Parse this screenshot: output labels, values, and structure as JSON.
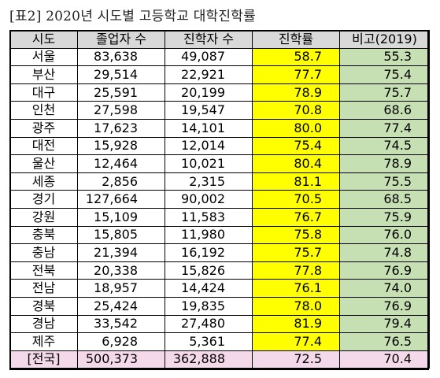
{
  "caption": "[표2] 2020년 시도별 고등학교 대학진학률",
  "headers": [
    "시도",
    "졸업자 수",
    "진학자 수",
    "진학률",
    "비고(2019)"
  ],
  "rows": [
    {
      "region": "서울",
      "graduates": "83,638",
      "entrants": "49,087",
      "rate": "58.7",
      "note": "55.3"
    },
    {
      "region": "부산",
      "graduates": "29,514",
      "entrants": "22,921",
      "rate": "77.7",
      "note": "75.4"
    },
    {
      "region": "대구",
      "graduates": "25,591",
      "entrants": "20,199",
      "rate": "78.9",
      "note": "75.7"
    },
    {
      "region": "인천",
      "graduates": "27,598",
      "entrants": "19,547",
      "rate": "70.8",
      "note": "68.6"
    },
    {
      "region": "광주",
      "graduates": "17,623",
      "entrants": "14,101",
      "rate": "80.0",
      "note": "77.4"
    },
    {
      "region": "대전",
      "graduates": "15,928",
      "entrants": "12,014",
      "rate": "75.4",
      "note": "74.5"
    },
    {
      "region": "울산",
      "graduates": "12,464",
      "entrants": "10,021",
      "rate": "80.4",
      "note": "78.9"
    },
    {
      "region": "세종",
      "graduates": "2,856",
      "entrants": "2,315",
      "rate": "81.1",
      "note": "75.5"
    },
    {
      "region": "경기",
      "graduates": "127,664",
      "entrants": "90,002",
      "rate": "70.5",
      "note": "68.5"
    },
    {
      "region": "강원",
      "graduates": "15,109",
      "entrants": "11,583",
      "rate": "76.7",
      "note": "75.9"
    },
    {
      "region": "충북",
      "graduates": "15,805",
      "entrants": "11,980",
      "rate": "75.8",
      "note": "76.0"
    },
    {
      "region": "충남",
      "graduates": "21,394",
      "entrants": "16,192",
      "rate": "75.7",
      "note": "74.8"
    },
    {
      "region": "전북",
      "graduates": "20,338",
      "entrants": "15,826",
      "rate": "77.8",
      "note": "76.9"
    },
    {
      "region": "전남",
      "graduates": "18,957",
      "entrants": "14,424",
      "rate": "76.1",
      "note": "74.0"
    },
    {
      "region": "경북",
      "graduates": "25,424",
      "entrants": "19,835",
      "rate": "78.0",
      "note": "76.9"
    },
    {
      "region": "경남",
      "graduates": "33,542",
      "entrants": "27,480",
      "rate": "81.9",
      "note": "79.4"
    },
    {
      "region": "제주",
      "graduates": "6,928",
      "entrants": "5,361",
      "rate": "77.4",
      "note": "76.5"
    }
  ],
  "total": {
    "region": "[전국]",
    "graduates": "500,373",
    "entrants": "362,888",
    "rate": "72.5",
    "note": "70.4"
  },
  "colors": {
    "header_bg": "#d9d9d9",
    "rate_bg": "#ffff00",
    "note_bg": "#c6e0b4",
    "total_bg": "#f4d9ea"
  }
}
